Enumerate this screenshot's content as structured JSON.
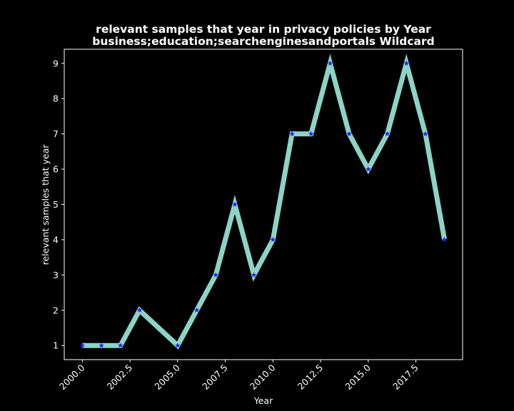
{
  "chart_data": {
    "type": "line",
    "title_line1": "relevant samples that year in privacy policies by Year",
    "title_line2": "business;education;searchenginesandportals Wildcard",
    "xlabel": "Year",
    "ylabel": "relevant samples that year",
    "x": [
      2000,
      2001,
      2002,
      2003,
      2005,
      2006,
      2007,
      2008,
      2009,
      2010,
      2011,
      2012,
      2013,
      2014,
      2015,
      2016,
      2017,
      2018,
      2019
    ],
    "series": [
      {
        "values": [
          1,
          1,
          1,
          2,
          1,
          2,
          3,
          5,
          3,
          4,
          7,
          7,
          9,
          7,
          6,
          7,
          9,
          7,
          4
        ]
      }
    ],
    "xticks": [
      2000.0,
      2002.5,
      2005.0,
      2007.5,
      2010.0,
      2012.5,
      2015.0,
      2017.5
    ],
    "xtick_labels": [
      "2000.0",
      "2002.5",
      "2005.0",
      "2007.5",
      "2010.0",
      "2012.5",
      "2015.0",
      "2017.5"
    ],
    "yticks": [
      1,
      2,
      3,
      4,
      5,
      6,
      7,
      8,
      9
    ],
    "ytick_labels": [
      "1",
      "2",
      "3",
      "4",
      "5",
      "6",
      "7",
      "8",
      "9"
    ],
    "xlim": [
      1999.05,
      2019.95
    ],
    "ylim": [
      0.6,
      9.4
    ],
    "grid": false,
    "line_color": "#8dd3c7",
    "marker_color": "#1f1fff",
    "marker": "star",
    "background": "#000000",
    "foreground": "#ffffff"
  }
}
